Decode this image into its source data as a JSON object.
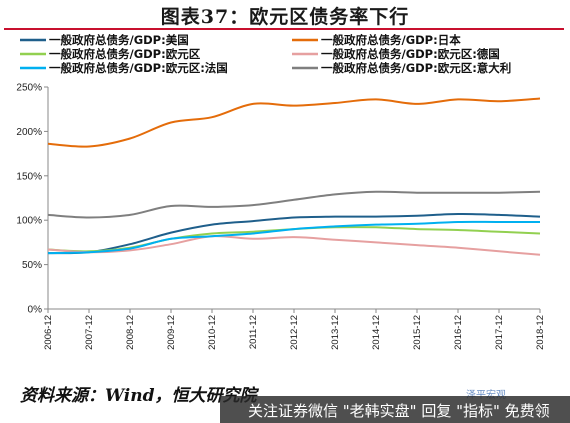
{
  "header": {
    "title": "图表37：欧元区债务率下行"
  },
  "footer": {
    "source": "资料来源：Wind，恒大研究院",
    "watermark": "关注证券微信 \"老韩实盘\" 回复 \"指标\" 免费领",
    "watermark_logo": "泽平宏观"
  },
  "colors": {
    "us": "#1f5f8b",
    "japan": "#e46c0a",
    "eurozone": "#92d050",
    "germany": "#e6a0a0",
    "france": "#00b0f0",
    "italy": "#7f7f7f"
  },
  "chart_data": {
    "type": "line",
    "x": [
      "2006-12",
      "2007-12",
      "2008-12",
      "2009-12",
      "2010-12",
      "2011-12",
      "2012-12",
      "2013-12",
      "2014-12",
      "2015-12",
      "2016-12",
      "2017-12",
      "2018-12"
    ],
    "ylim": [
      0,
      250
    ],
    "yticks": [
      "0%",
      "50%",
      "100%",
      "150%",
      "200%",
      "250%"
    ],
    "grid": false,
    "legend_position": "top",
    "series": [
      {
        "name": "一般政府总债务/GDP:美国",
        "color_key": "us",
        "values": [
          63,
          64,
          73,
          86,
          95,
          99,
          103,
          104,
          104,
          105,
          107,
          106,
          104
        ]
      },
      {
        "name": "一般政府总债务/GDP:日本",
        "color_key": "japan",
        "values": [
          186,
          183,
          192,
          210,
          216,
          231,
          229,
          232,
          236,
          231,
          236,
          234,
          237
        ]
      },
      {
        "name": "一般政府总债务/GDP:欧元区",
        "color_key": "eurozone",
        "values": [
          67,
          65,
          69,
          79,
          85,
          87,
          90,
          92,
          92,
          90,
          89,
          87,
          85
        ]
      },
      {
        "name": "一般政府总债务/GDP:欧元区:德国",
        "color_key": "germany",
        "values": [
          67,
          64,
          66,
          73,
          82,
          79,
          81,
          78,
          75,
          72,
          69,
          65,
          61
        ]
      },
      {
        "name": "一般政府总债务/GDP:欧元区:法国",
        "color_key": "france",
        "values": [
          63,
          64,
          68,
          79,
          82,
          85,
          90,
          93,
          95,
          96,
          98,
          98,
          98
        ]
      },
      {
        "name": "一般政府总债务/GDP:欧元区:意大利",
        "color_key": "italy",
        "values": [
          106,
          103,
          106,
          116,
          115,
          117,
          123,
          129,
          132,
          131,
          131,
          131,
          132
        ]
      }
    ]
  }
}
